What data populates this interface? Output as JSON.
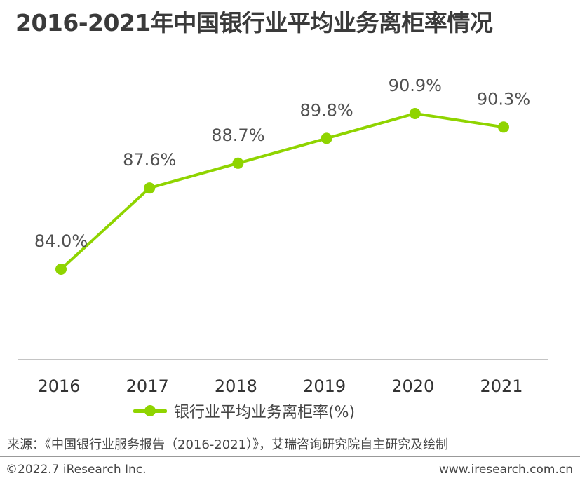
{
  "title": "2016-2021年中国银行业平均业务离柜率情况",
  "chart_data": {
    "type": "line",
    "categories": [
      "2016",
      "2017",
      "2018",
      "2019",
      "2020",
      "2021"
    ],
    "series": [
      {
        "name": "银行业平均业务离柜率(%)",
        "values": [
          84.0,
          87.6,
          88.7,
          89.8,
          90.9,
          90.3
        ],
        "labels": [
          "84.0%",
          "87.6%",
          "88.7%",
          "89.8%",
          "90.9%",
          "90.3%"
        ],
        "color": "#8fd400"
      }
    ],
    "legend_position": "bottom",
    "grid": false
  },
  "source": "来源：《中国银行业服务报告（2016-2021）》，艾瑞咨询研究院自主研究及绘制",
  "footer": {
    "copyright": "©2022.7 iResearch Inc.",
    "website": "www.iresearch.com.cn"
  }
}
